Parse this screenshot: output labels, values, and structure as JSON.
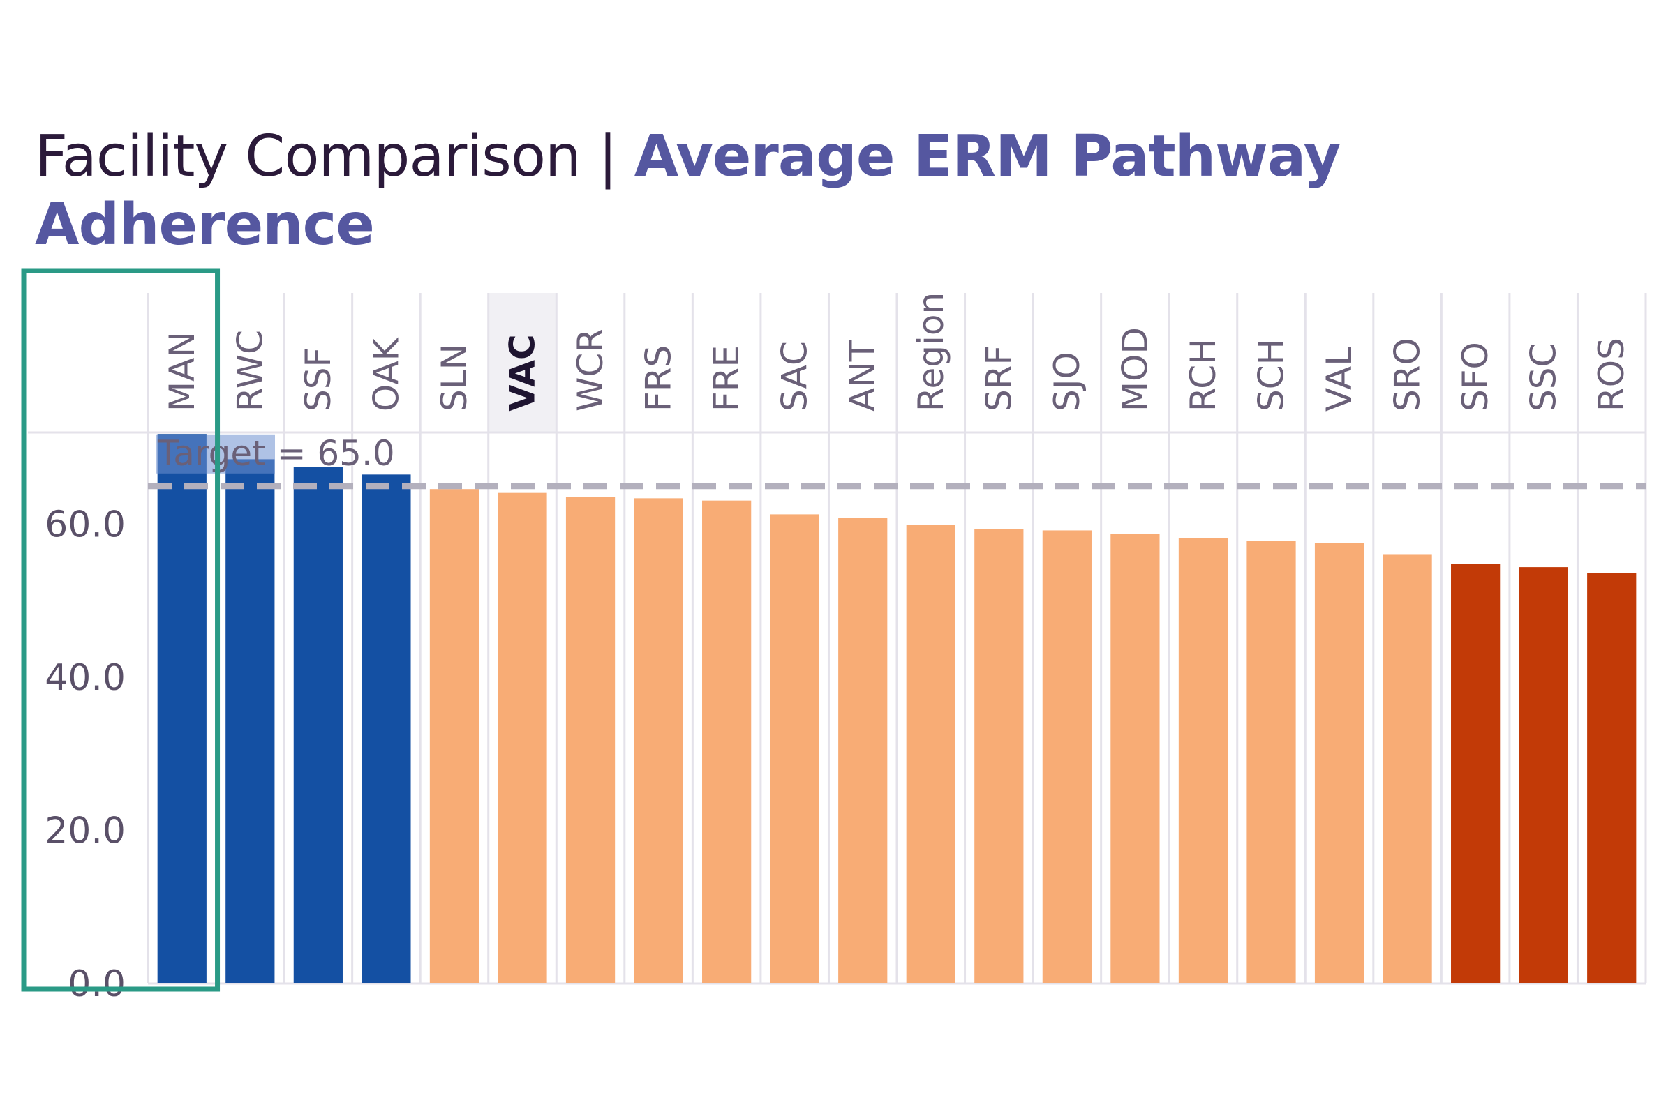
{
  "title": {
    "part1": "Facility Comparison | ",
    "part2": "Average ERM Pathway Adherence"
  },
  "colors": {
    "above_target": "#1450a3",
    "middle": "#f8ac75",
    "below": "#c23a07",
    "target_line": "#b3b0bd",
    "grid": "#e4e2ea",
    "highlight_box": "#2a9a86",
    "target_label_bg": "#6d8fd0"
  },
  "chart_data": {
    "type": "bar",
    "title": "Facility Comparison | Average ERM Pathway Adherence",
    "xlabel": "",
    "ylabel": "",
    "ylim": [
      0,
      72
    ],
    "yticks": [
      "0.0",
      "20.0",
      "40.0",
      "60.0"
    ],
    "categories": [
      "MAN",
      "RWC",
      "SSF",
      "OAK",
      "SLN",
      "VAC",
      "WCR",
      "FRS",
      "FRE",
      "SAC",
      "ANT",
      "Region",
      "SRF",
      "SJO",
      "MOD",
      "RCH",
      "SCH",
      "VAL",
      "SRO",
      "SFO",
      "SSC",
      "ROS"
    ],
    "values": [
      71.8,
      68.5,
      67.5,
      66.5,
      64.6,
      64.1,
      63.6,
      63.4,
      63.1,
      61.3,
      60.8,
      59.9,
      59.4,
      59.2,
      58.7,
      58.2,
      57.8,
      57.6,
      56.1,
      54.8,
      54.4,
      53.6
    ],
    "color_groups": [
      "above_target",
      "above_target",
      "above_target",
      "above_target",
      "middle",
      "middle",
      "middle",
      "middle",
      "middle",
      "middle",
      "middle",
      "middle",
      "middle",
      "middle",
      "middle",
      "middle",
      "middle",
      "middle",
      "middle",
      "below",
      "below",
      "below"
    ],
    "highlighted_category": "VAC",
    "selected_category": "MAN",
    "target": {
      "value": 65.0,
      "label": "Target = 65.0"
    }
  }
}
